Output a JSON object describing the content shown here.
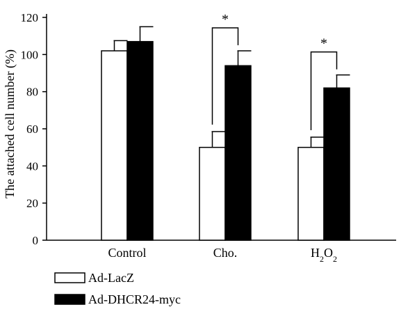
{
  "chart_data": {
    "type": "bar",
    "ylabel": "The attached cell number (%)",
    "xlabel": "",
    "ylim": [
      0,
      120
    ],
    "yticks": [
      0,
      20,
      40,
      60,
      80,
      100,
      120
    ],
    "categories": [
      {
        "label": "Control",
        "sub": ""
      },
      {
        "label": "Cho.",
        "sub": ""
      },
      {
        "label": "H2O2",
        "base": "H",
        "sub1": "2",
        "mid": "O",
        "sub2": "2"
      }
    ],
    "series": [
      {
        "name": "Ad-LacZ",
        "fill": "#ffffff",
        "values": [
          102,
          50,
          50
        ],
        "errors": [
          5.5,
          8.5,
          5.5
        ]
      },
      {
        "name": "Ad-DHCR24-myc",
        "fill": "#000000",
        "values": [
          107,
          94,
          82
        ],
        "errors": [
          8,
          8,
          7
        ]
      }
    ],
    "significance": [
      {
        "category_index": 1,
        "label": "*"
      },
      {
        "category_index": 2,
        "label": "*"
      }
    ],
    "legend_position": "bottom-left",
    "grid": false
  }
}
